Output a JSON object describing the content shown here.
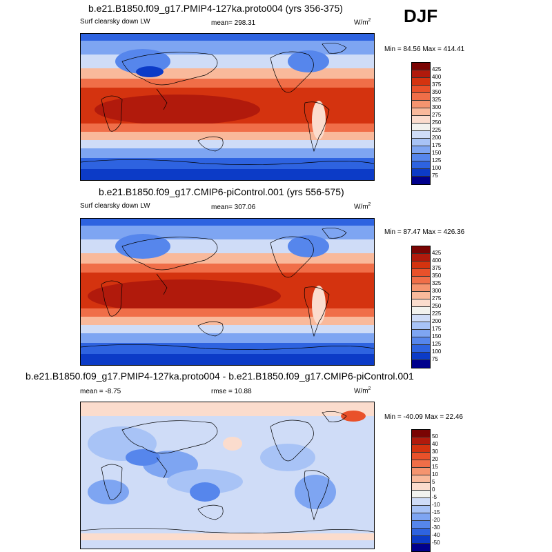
{
  "season": "DJF",
  "panels": [
    {
      "title": "b.e21.B1850.f09_g17.PMIP4-127ka.proto004 (yrs 356-375)",
      "left_label": "Surf clearsky down LW",
      "mean_label": "mean= 298.31",
      "rmse_label": "",
      "units": "W/m",
      "units_exp": "2",
      "minmax": "Min =  84.56 Max = 414.41",
      "type": "absolute"
    },
    {
      "title": "b.e21.B1850.f09_g17.CMIP6-piControl.001 (yrs 556-575)",
      "left_label": "Surf clearsky down LW",
      "mean_label": "mean= 307.06",
      "rmse_label": "",
      "units": "W/m",
      "units_exp": "2",
      "minmax": "Min =  87.47 Max = 426.36",
      "type": "absolute"
    },
    {
      "title": "b.e21.B1850.f09_g17.PMIP4-127ka.proto004 - b.e21.B1850.f09_g17.CMIP6-piControl.001",
      "left_label": "",
      "mean_label": "mean =  -8.75",
      "rmse_label": "rmse =  10.88",
      "units": "W/m",
      "units_exp": "2",
      "minmax": "Min = -40.09 Max =  22.46",
      "type": "difference"
    }
  ],
  "colorbars": {
    "absolute": {
      "labels": [
        "425",
        "400",
        "375",
        "350",
        "325",
        "300",
        "275",
        "250",
        "225",
        "200",
        "175",
        "150",
        "125",
        "100",
        "75"
      ],
      "colors": [
        "#7a0403",
        "#b11a0c",
        "#d4330f",
        "#e9512a",
        "#f06e48",
        "#f5946f",
        "#f9b99b",
        "#fbdccd",
        "#f2f2ee",
        "#cfdcf7",
        "#a8c3f6",
        "#7ea5f2",
        "#5686ec",
        "#2e63e0",
        "#0c3bc7",
        "#00008c"
      ]
    },
    "difference": {
      "labels": [
        "50",
        "40",
        "30",
        "20",
        "15",
        "10",
        "5",
        "0",
        "-5",
        "-10",
        "-15",
        "-20",
        "-30",
        "-40",
        "-50"
      ],
      "colors": [
        "#7a0403",
        "#b11a0c",
        "#d4330f",
        "#e9512a",
        "#f06e48",
        "#f5946f",
        "#f9b99b",
        "#fbdccd",
        "#f2f2ee",
        "#cfdcf7",
        "#a8c3f6",
        "#7ea5f2",
        "#5686ec",
        "#2e63e0",
        "#0c3bc7",
        "#00008c"
      ]
    }
  }
}
